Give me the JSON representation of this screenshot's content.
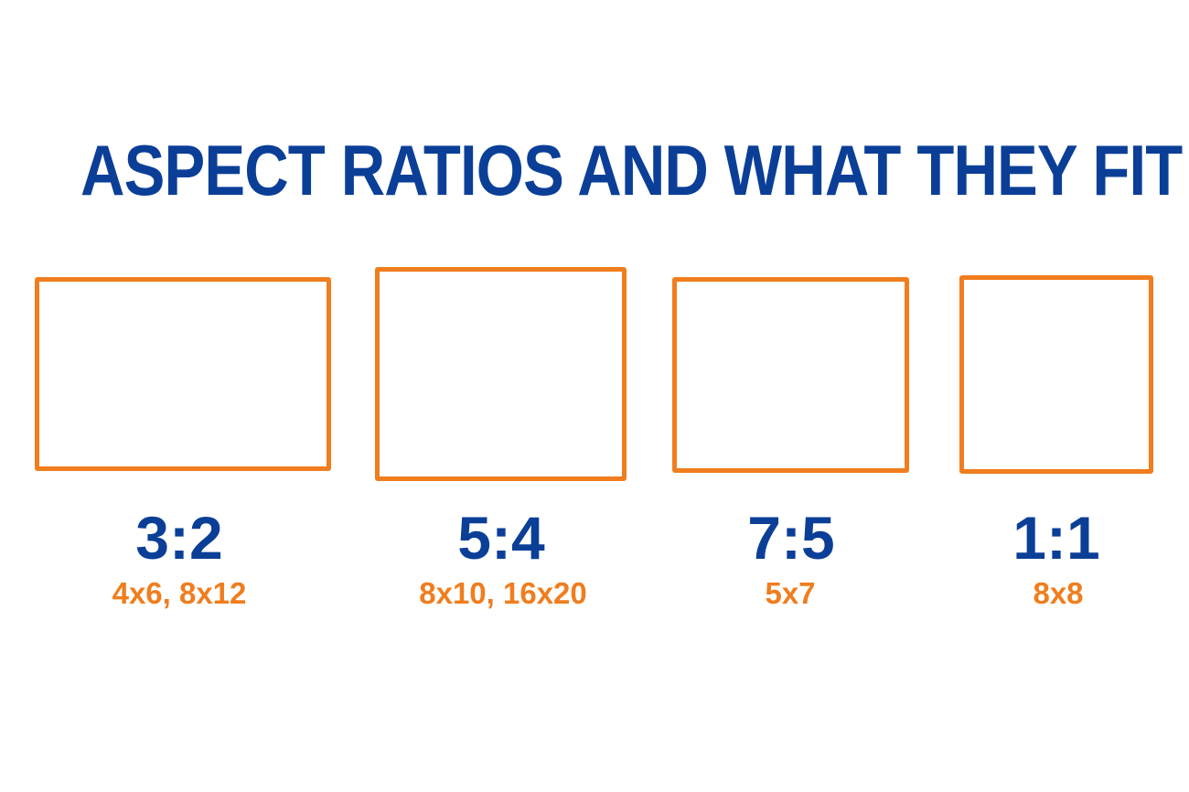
{
  "title": "ASPECT RATIOS AND WHAT THEY FIT",
  "colors": {
    "title": "#0b3f97",
    "ratio_text": "#0b3f97",
    "frame_stroke": "#f07d1e",
    "sizes_text": "#f07d1e",
    "background": "#ffffff"
  },
  "ratios": [
    {
      "ratio": "3:2",
      "sizes": "4x6, 8x12"
    },
    {
      "ratio": "5:4",
      "sizes": "8x10, 16x20"
    },
    {
      "ratio": "7:5",
      "sizes": "5x7"
    },
    {
      "ratio": "1:1",
      "sizes": "8x8"
    }
  ]
}
